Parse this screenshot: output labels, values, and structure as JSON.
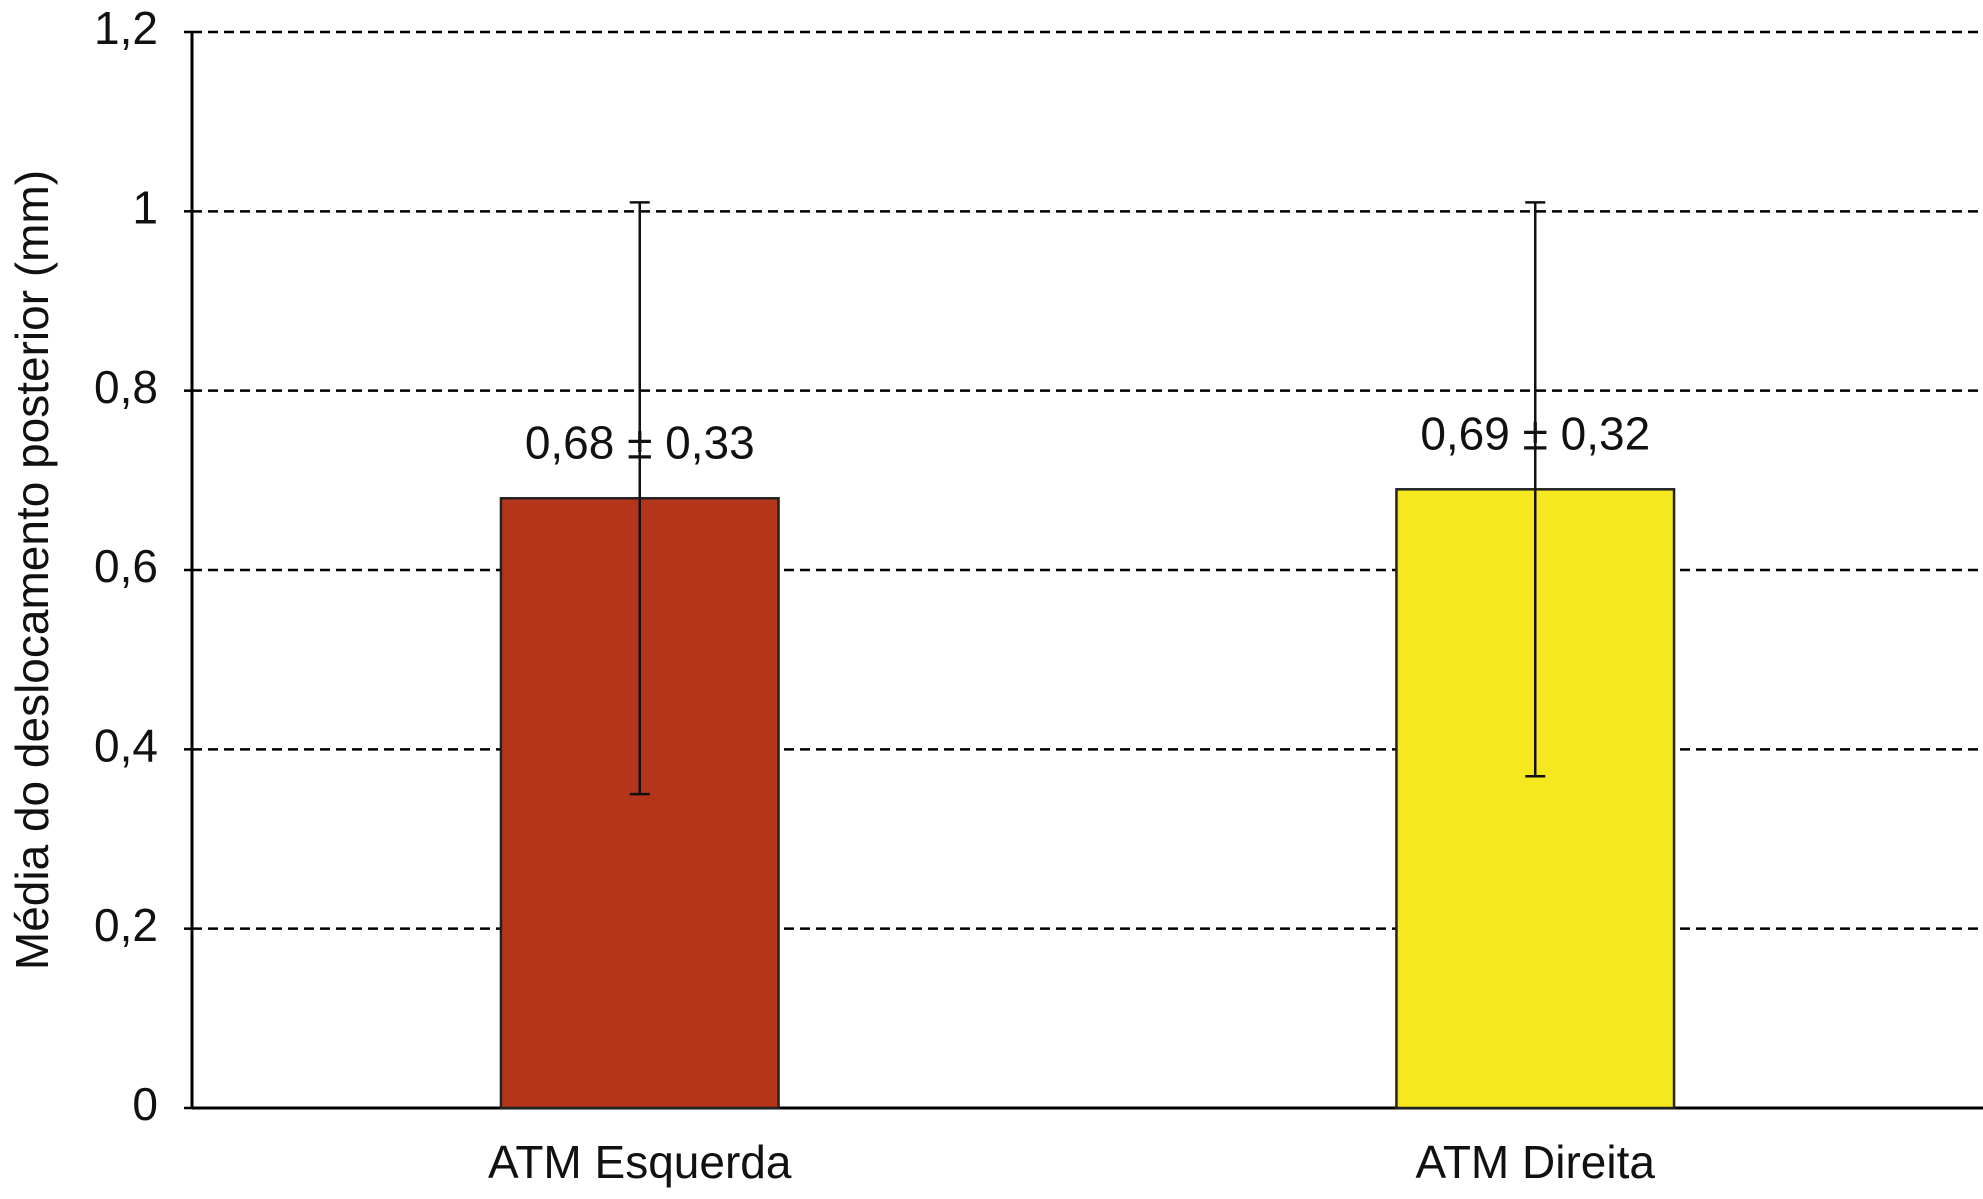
{
  "chart_data": {
    "type": "bar",
    "y_label": "Média do deslocamento posterior (mm)",
    "categories": [
      "ATM Esquerda",
      "ATM Direita"
    ],
    "values": [
      0.68,
      0.69
    ],
    "errors": [
      0.33,
      0.32
    ],
    "value_labels": [
      "0,68 ± 0,33",
      "0,69 ± 0,32"
    ],
    "colors": [
      "#b5351b",
      "#f5e81f"
    ],
    "ylim": [
      0,
      1.2
    ],
    "yticks": [
      0,
      {
        "value": 0.2,
        "label": "0,2"
      },
      {
        "value": 0.4,
        "label": "0,4"
      },
      {
        "value": 0.6,
        "label": "0,6"
      },
      {
        "value": 0.8,
        "label": "0,8"
      },
      1,
      {
        "value": 1.2,
        "label": "1,2"
      }
    ],
    "grid": true
  }
}
